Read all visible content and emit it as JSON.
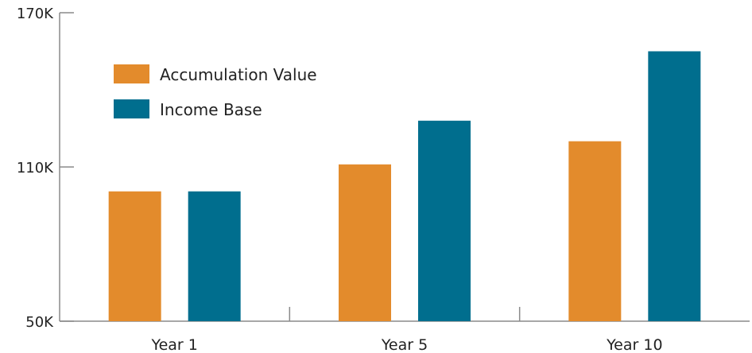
{
  "chart_data": {
    "type": "bar",
    "title": "",
    "xlabel": "",
    "ylabel": "",
    "categories": [
      "Year 1",
      "Year 5",
      "Year 10"
    ],
    "series": [
      {
        "name": "Accumulation Value",
        "color": "#E38B2C",
        "values": [
          100500,
          111000,
          120000
        ]
      },
      {
        "name": "Income Base",
        "color": "#006E8E",
        "values": [
          100500,
          128000,
          155000
        ]
      }
    ],
    "ylim": [
      50000,
      170000
    ],
    "yticks": [
      {
        "value": 50000,
        "label": "50K"
      },
      {
        "value": 110000,
        "label": "110K"
      },
      {
        "value": 170000,
        "label": "170K"
      }
    ],
    "legend_position": "top-left",
    "grid": false
  }
}
